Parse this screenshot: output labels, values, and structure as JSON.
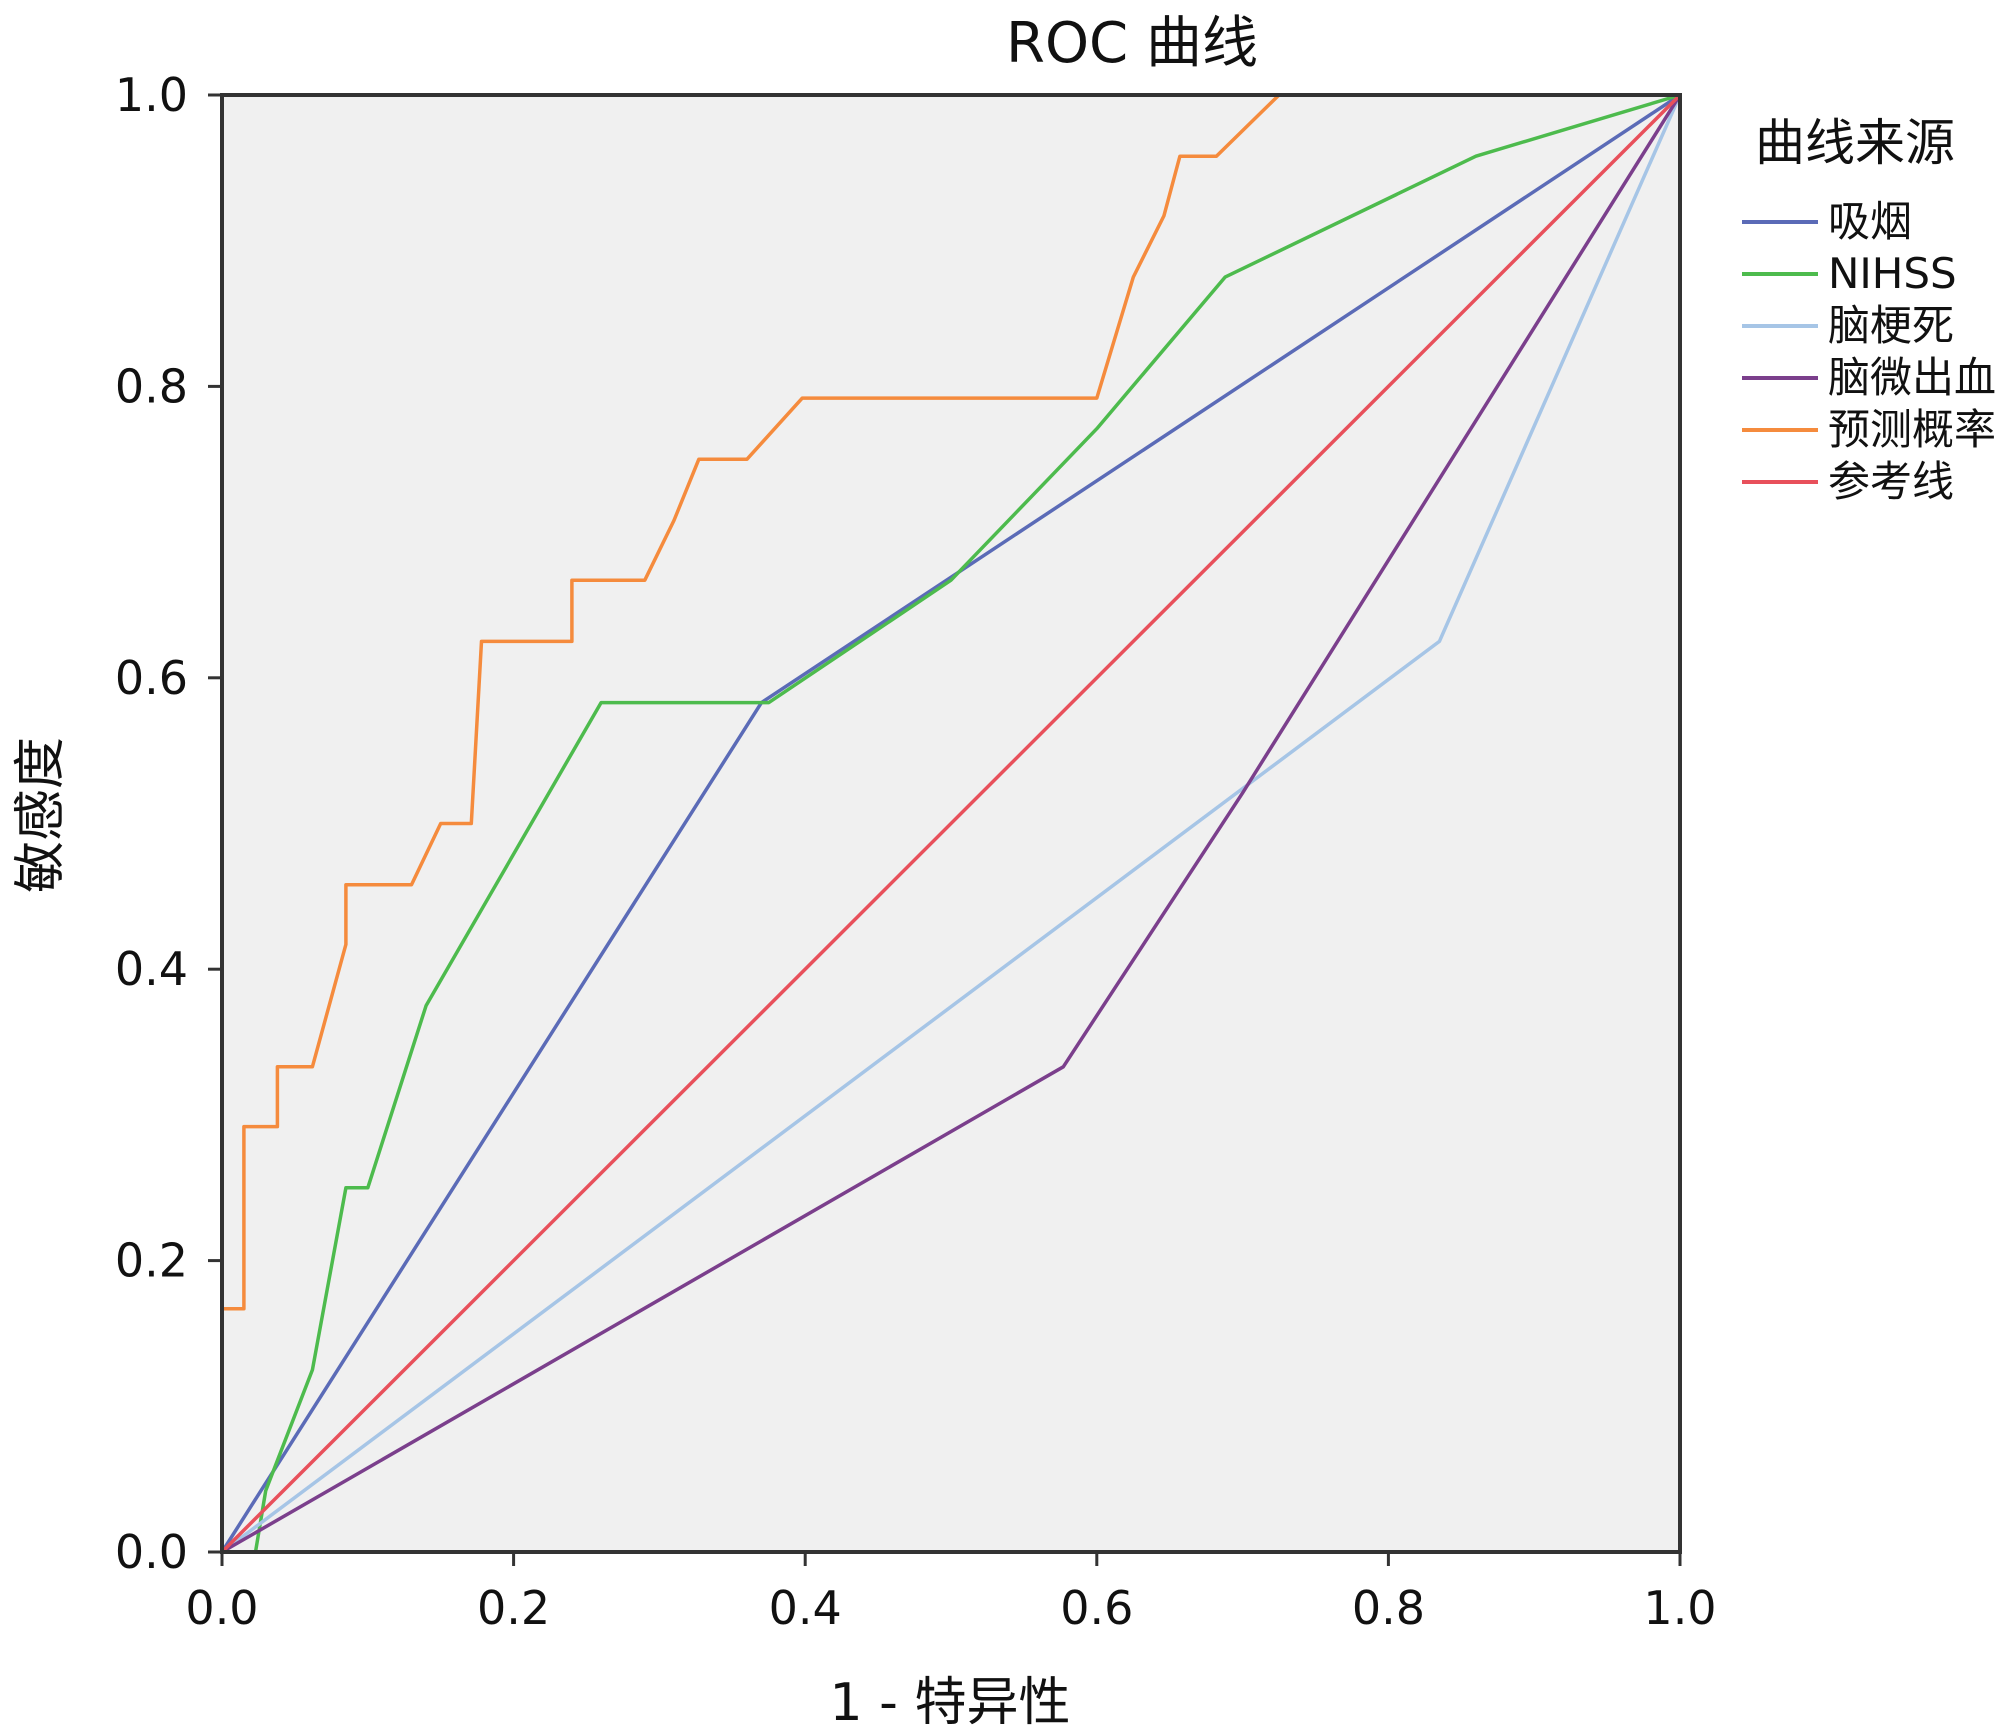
{
  "chart_data": {
    "type": "line",
    "title": "ROC 曲线",
    "xlabel": "1 - 特异性",
    "ylabel": "敏感度",
    "xlim": [
      0,
      1
    ],
    "ylim": [
      0,
      1
    ],
    "x_ticks": [
      "0.0",
      "0.2",
      "0.4",
      "0.6",
      "0.8",
      "1.0"
    ],
    "y_ticks": [
      "0.0",
      "0.2",
      "0.4",
      "0.6",
      "0.8",
      "1.0"
    ],
    "grid": false,
    "plot_background": "#f0f0f0",
    "legend": {
      "title": "曲线来源",
      "placement": "right"
    },
    "series": [
      {
        "name": "吸烟",
        "color": "#5b6bb7",
        "points": [
          [
            0,
            0
          ],
          [
            0.37,
            0.583
          ],
          [
            1,
            1
          ]
        ]
      },
      {
        "name": "NIHSS",
        "color": "#4dbb4d",
        "points": [
          [
            0,
            0
          ],
          [
            0.023,
            0
          ],
          [
            0.03,
            0.042
          ],
          [
            0.062,
            0.125
          ],
          [
            0.085,
            0.25
          ],
          [
            0.1,
            0.25
          ],
          [
            0.14,
            0.375
          ],
          [
            0.26,
            0.583
          ],
          [
            0.375,
            0.583
          ],
          [
            0.5,
            0.667
          ],
          [
            0.6,
            0.771
          ],
          [
            0.688,
            0.875
          ],
          [
            0.86,
            0.958
          ],
          [
            1,
            1
          ]
        ]
      },
      {
        "name": "脑梗死",
        "color": "#a6c5e6",
        "points": [
          [
            0,
            0
          ],
          [
            0.835,
            0.625
          ],
          [
            1,
            1
          ]
        ]
      },
      {
        "name": "脑微出血",
        "color": "#7b3f8c",
        "points": [
          [
            0,
            0
          ],
          [
            0.577,
            0.333
          ],
          [
            0.7,
            0.521
          ],
          [
            1,
            1
          ]
        ]
      },
      {
        "name": "预测概率",
        "color": "#f58b3d",
        "points": [
          [
            0,
            0
          ],
          [
            0,
            0.167
          ],
          [
            0.015,
            0.167
          ],
          [
            0.015,
            0.292
          ],
          [
            0.038,
            0.292
          ],
          [
            0.038,
            0.333
          ],
          [
            0.062,
            0.333
          ],
          [
            0.085,
            0.417
          ],
          [
            0.085,
            0.458
          ],
          [
            0.13,
            0.458
          ],
          [
            0.15,
            0.5
          ],
          [
            0.171,
            0.5
          ],
          [
            0.178,
            0.625
          ],
          [
            0.24,
            0.625
          ],
          [
            0.24,
            0.667
          ],
          [
            0.29,
            0.667
          ],
          [
            0.31,
            0.708
          ],
          [
            0.327,
            0.75
          ],
          [
            0.36,
            0.75
          ],
          [
            0.398,
            0.792
          ],
          [
            0.6,
            0.792
          ],
          [
            0.625,
            0.875
          ],
          [
            0.646,
            0.917
          ],
          [
            0.657,
            0.958
          ],
          [
            0.682,
            0.958
          ],
          [
            0.725,
            1
          ],
          [
            1,
            1
          ]
        ]
      },
      {
        "name": "参考线",
        "color": "#e8505b",
        "points": [
          [
            0,
            0
          ],
          [
            1,
            1
          ]
        ]
      }
    ]
  }
}
